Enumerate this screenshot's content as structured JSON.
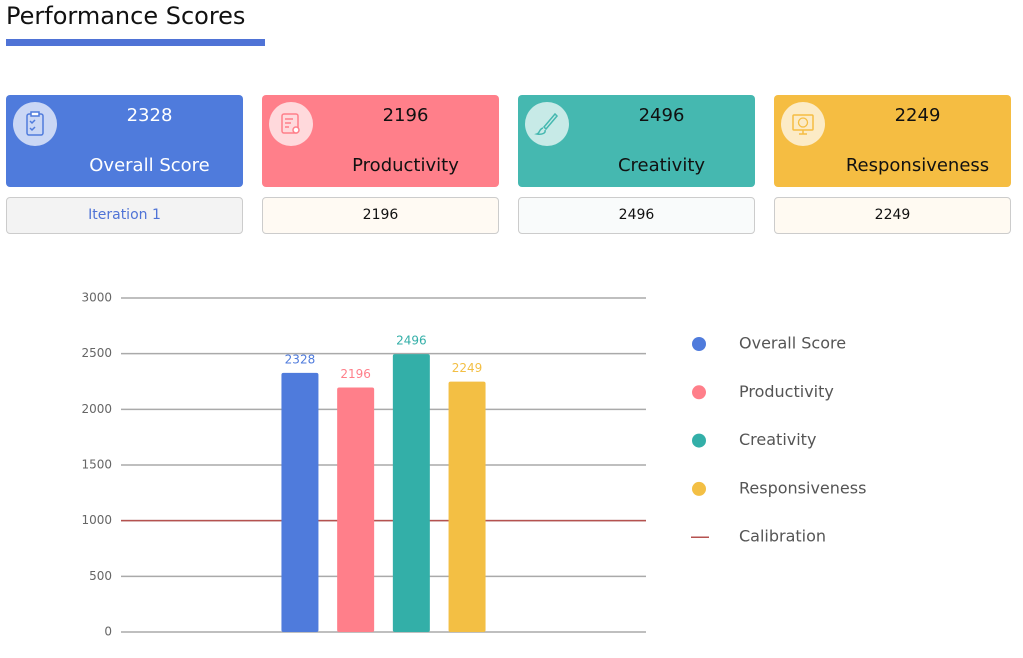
{
  "header": {
    "title": "Performance Scores"
  },
  "cards": [
    {
      "value": 2328,
      "label": "Overall Score",
      "footer": "Iteration 1",
      "color": "#4f7bdc"
    },
    {
      "value": 2196,
      "label": "Productivity",
      "footer": 2196,
      "color": "#ff7f8a"
    },
    {
      "value": 2496,
      "label": "Creativity",
      "footer": 2496,
      "color": "#45b8b0"
    },
    {
      "value": 2249,
      "label": "Responsiveness",
      "footer": 2249,
      "color": "#f5bd42"
    }
  ],
  "chart_data": {
    "type": "bar",
    "categories": [
      null
    ],
    "series": [
      {
        "name": "Overall Score",
        "color": "#4f7bdc",
        "values": [
          2328
        ]
      },
      {
        "name": "Productivity",
        "color": "#ff7f8a",
        "values": [
          2196
        ]
      },
      {
        "name": "Creativity",
        "color": "#33afa8",
        "values": [
          2496
        ]
      },
      {
        "name": "Responsiveness",
        "color": "#f3bf44",
        "values": [
          2249
        ]
      }
    ],
    "reference_lines": [
      {
        "name": "Calibration",
        "value": 1000,
        "color": "#b5524f"
      }
    ],
    "ylim": [
      0,
      3000
    ],
    "yticks": [
      0,
      500,
      1000,
      1500,
      2000,
      2500,
      3000
    ],
    "grid": true,
    "legend": "right"
  }
}
